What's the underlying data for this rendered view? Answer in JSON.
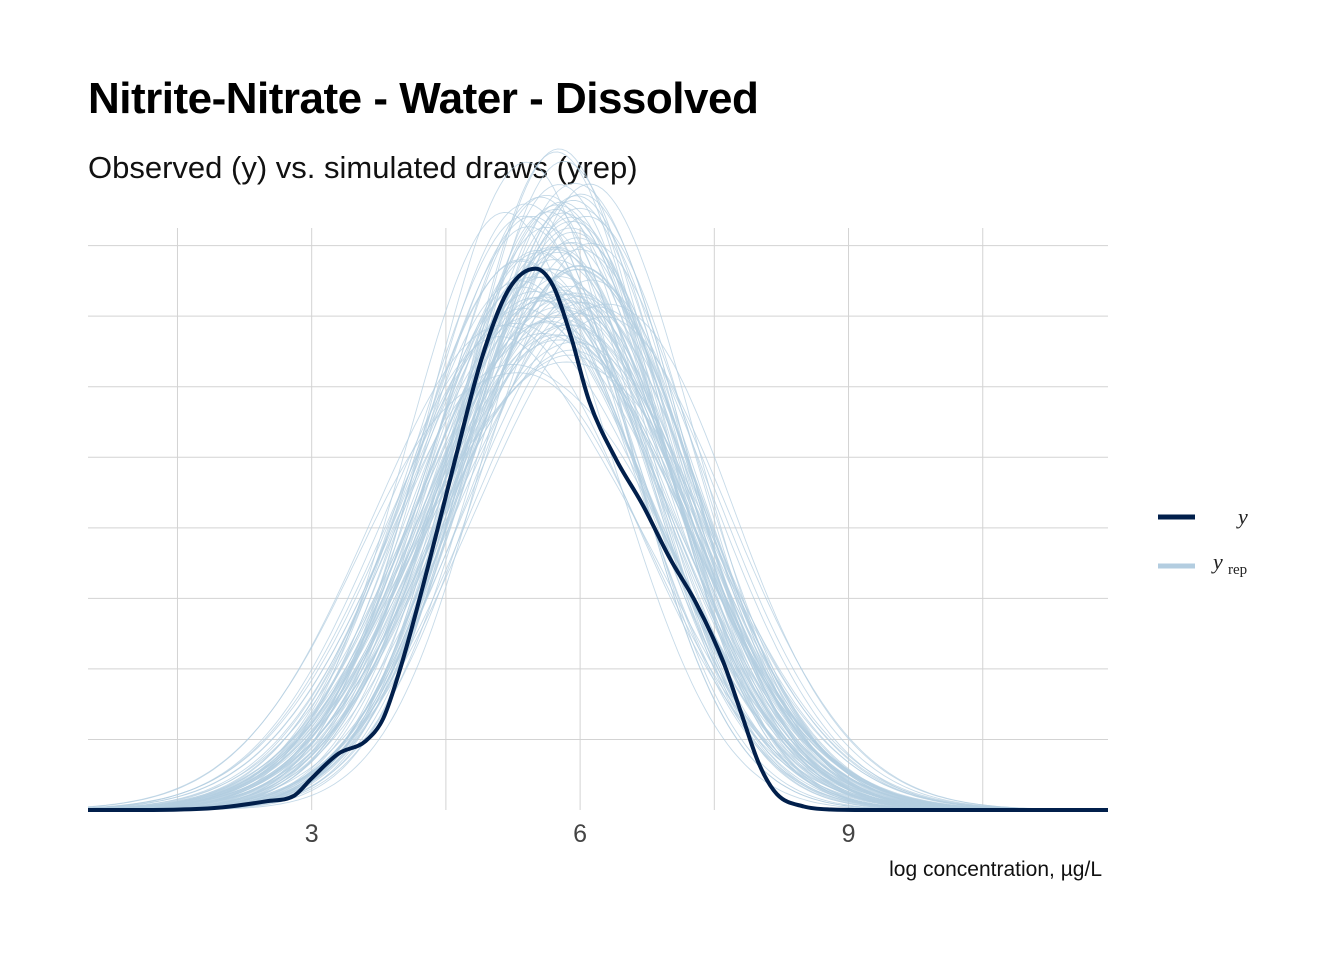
{
  "chart_data": {
    "type": "line",
    "title": "Nitrite-Nitrate - Water - Dissolved",
    "subtitle": "Observed (y) vs. simulated draws (yrep)",
    "xlabel": "log concentration, µg/L",
    "ylabel": "",
    "xlim": [
      0.5,
      11.9
    ],
    "ylim": [
      0,
      0.33
    ],
    "x_ticks": [
      3,
      6,
      9
    ],
    "x_tick_labels": [
      "3",
      "6",
      "9"
    ],
    "grid": true,
    "legend_position": "right",
    "colors": {
      "y": "#011f4b",
      "yrep": "#b3cde0",
      "grid": "#d3d3d3"
    },
    "series": [
      {
        "name": "y",
        "x": [
          0.5,
          1.0,
          1.5,
          2.0,
          2.5,
          2.8,
          3.0,
          3.3,
          3.6,
          3.8,
          4.0,
          4.3,
          4.6,
          4.9,
          5.2,
          5.5,
          5.7,
          5.9,
          6.1,
          6.4,
          6.7,
          7.0,
          7.3,
          7.6,
          7.8,
          8.0,
          8.2,
          8.5,
          8.8,
          9.2,
          9.6,
          10.0,
          11.0,
          11.9
        ],
        "y": [
          0.0,
          0.0,
          0.0002,
          0.0015,
          0.005,
          0.008,
          0.018,
          0.032,
          0.039,
          0.052,
          0.082,
          0.138,
          0.198,
          0.256,
          0.295,
          0.307,
          0.297,
          0.268,
          0.232,
          0.199,
          0.173,
          0.143,
          0.117,
          0.084,
          0.055,
          0.026,
          0.009,
          0.002,
          0.0003,
          0.0,
          0.0,
          0.0,
          0.0,
          0.0
        ]
      },
      {
        "name": "yrep",
        "draws": 100,
        "mean": 5.7,
        "sd_range": [
          1.1,
          1.5
        ],
        "peak_range": [
          0.19,
          0.33
        ]
      }
    ]
  },
  "legend": {
    "items": [
      {
        "symbol": "y",
        "subscript": ""
      },
      {
        "symbol": "y",
        "subscript": "rep"
      }
    ]
  }
}
